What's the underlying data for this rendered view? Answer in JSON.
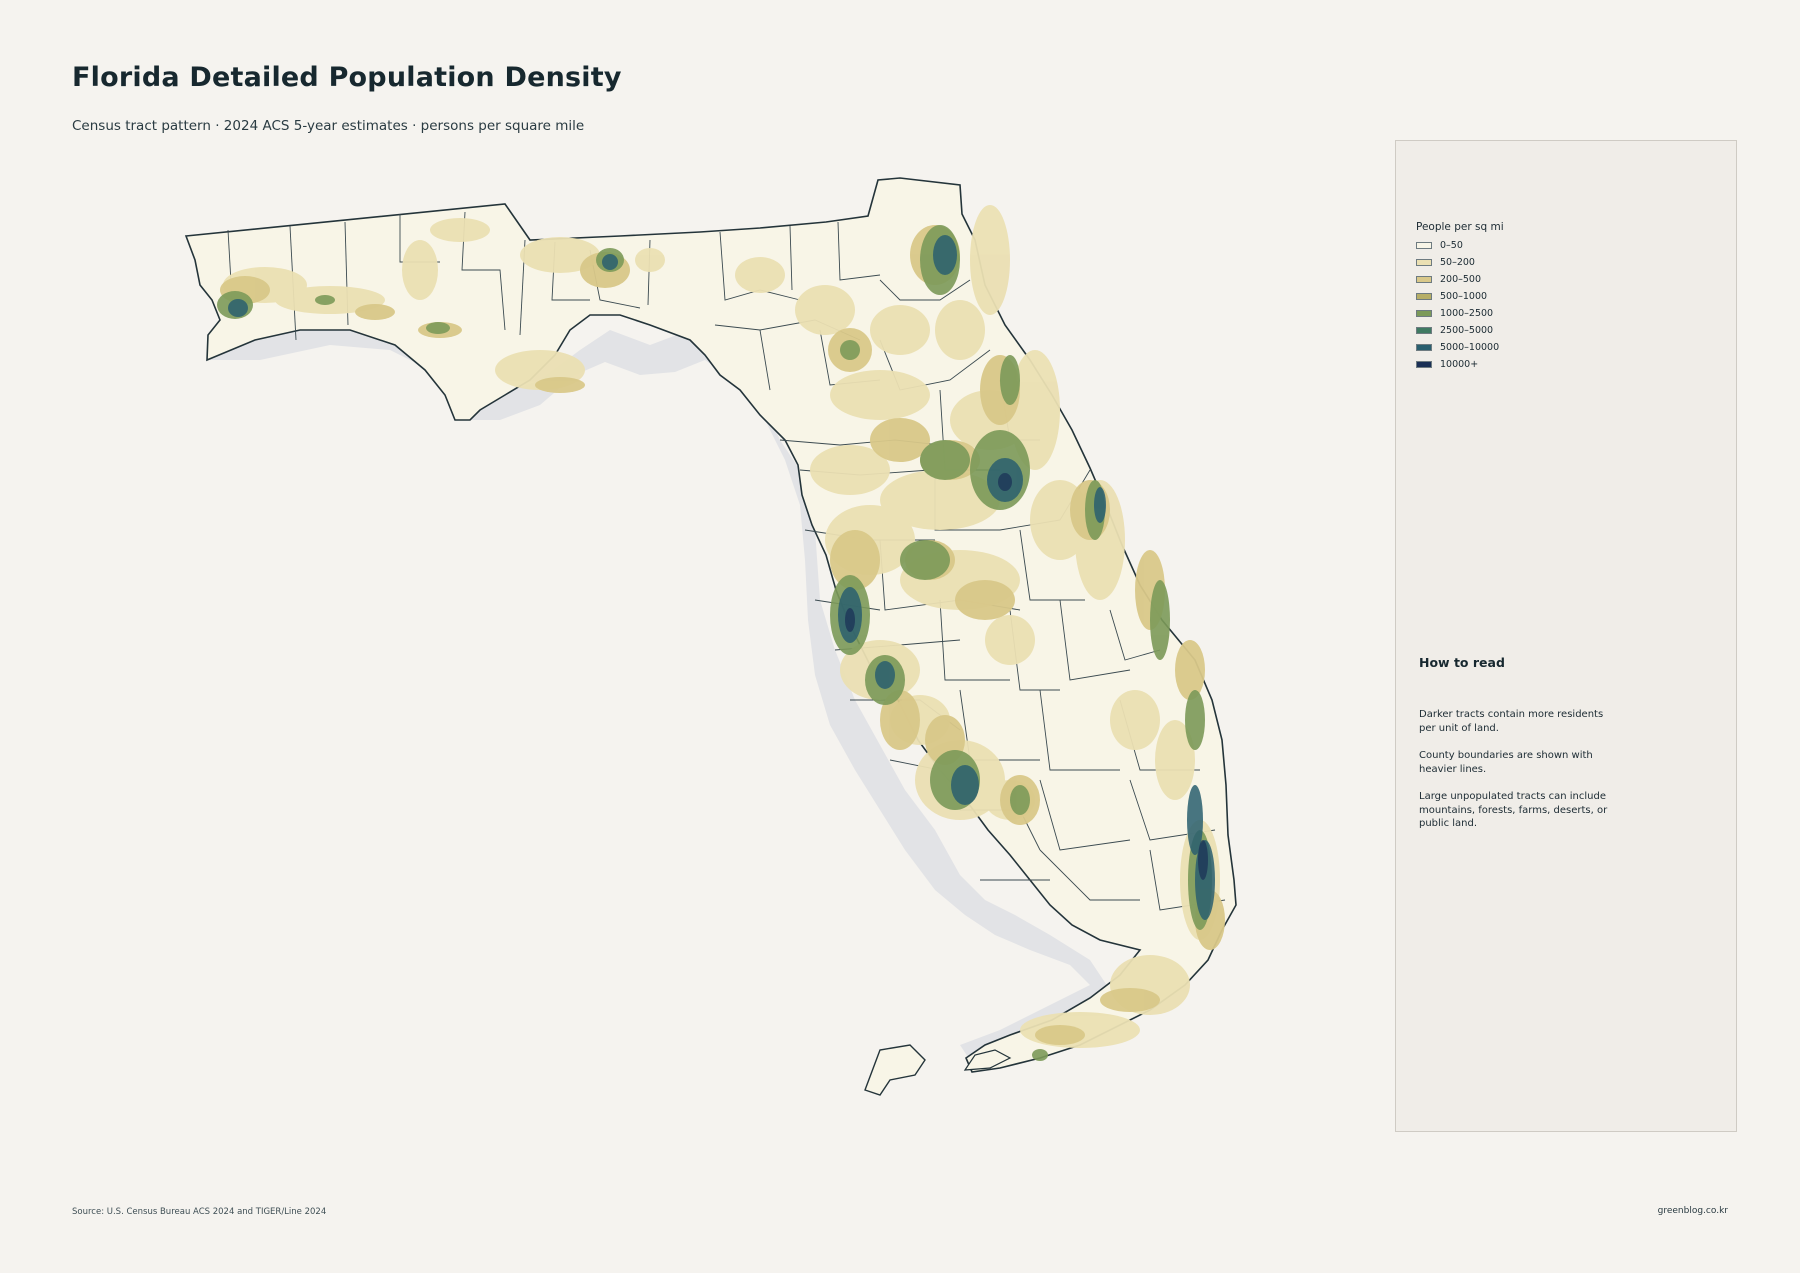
{
  "title": "Florida Detailed Population Density",
  "subtitle": "Census tract pattern · 2024 ACS 5-year estimates · persons per square mile",
  "legend": {
    "title": "People per sq mi",
    "items": [
      {
        "label": "0–50",
        "color": "#f8f5e7"
      },
      {
        "label": "50–200",
        "color": "#ebe0b3"
      },
      {
        "label": "200–500",
        "color": "#d9c889"
      },
      {
        "label": "500–1000",
        "color": "#b6ae66"
      },
      {
        "label": "1000–2500",
        "color": "#7c9a59"
      },
      {
        "label": "2500–5000",
        "color": "#3f7a62"
      },
      {
        "label": "5000–10000",
        "color": "#2a5f6f"
      },
      {
        "label": "10000+",
        "color": "#1a2f55"
      }
    ]
  },
  "how_to_read": {
    "title": "How to read",
    "paragraphs": [
      "Darker tracts contain more residents per unit of land.",
      "County boundaries are shown with heavier lines.",
      "Large unpopulated tracts can include mountains, forests, farms, deserts, or public land."
    ]
  },
  "source": "Source: U.S. Census Bureau ACS 2024 and TIGER/Line 2024",
  "credit": "greenblog.co.kr",
  "colors": {
    "background": "#f5f3ef",
    "panel": "#f0ede8",
    "land": "#f8f5e7",
    "water_shadow": "#e2e3e6",
    "border": "#24343a"
  }
}
